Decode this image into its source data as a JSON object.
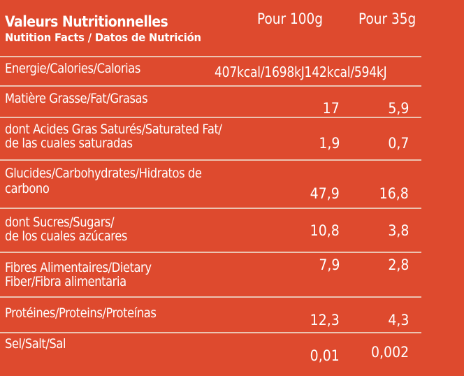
{
  "title": "Valeurs Nutritionnelles",
  "subtitle": "Nutition Facts / Datos de Nutrición",
  "columns": {
    "per100": "Pour 100g",
    "per35": "Pour 35g"
  },
  "energy": {
    "label": "Energie/Calories/Calorias",
    "per100": "407kcal/1698kJ",
    "per35": "142kcal/594kJ"
  },
  "rows": [
    {
      "line1": "Matière Grasse/Fat/Grasas",
      "line2": "",
      "per100": "17",
      "per35": "5,9"
    },
    {
      "line1": "dont Acides Gras Saturés/Saturated Fat/",
      "line2": "de las cuales saturadas",
      "per100": "1,9",
      "per35": "0,7"
    },
    {
      "line1": "Glucides/Carbohydrates/Hidratos de",
      "line2": "carbono",
      "per100": "47,9",
      "per35": "16,8"
    },
    {
      "line1": "dont Sucres/Sugars/",
      "line2": "de los cuales azúcares",
      "per100": "10,8",
      "per35": "3,8"
    },
    {
      "line1": "Fibres Alimentaires/Dietary",
      "line2": "Fiber/Fibra alimentaria",
      "per100": "7,9",
      "per35": "2,8"
    },
    {
      "line1": "Protéines/Proteins/Proteínas",
      "line2": "",
      "per100": "12,3",
      "per35": "4,3"
    },
    {
      "line1": "Sel/Salt/Sal",
      "line2": "",
      "per100": "0,01",
      "per35": "0,002"
    }
  ],
  "colors": {
    "background": "#de4a2e",
    "text": "#ffffff",
    "rule": "#ecc3b1"
  }
}
